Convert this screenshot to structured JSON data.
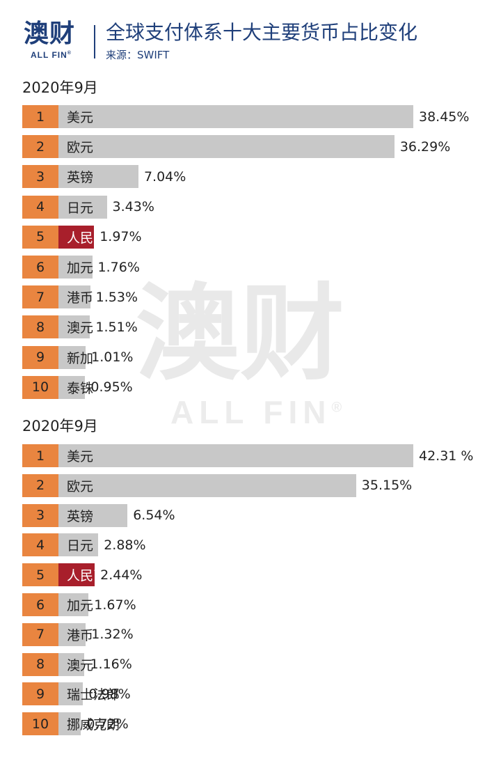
{
  "header": {
    "logo_cn": "澳财",
    "logo_en": "ALL FIN",
    "logo_mark": "®",
    "title": "全球支付体系十大主要货币占比变化",
    "source": "来源：SWIFT"
  },
  "watermark": {
    "cn": "澳财",
    "en": "ALL FIN",
    "mark": "®"
  },
  "colors": {
    "rank": "#e98540",
    "bar": "#c8c8c8",
    "highlight": "#a81f2b",
    "brand": "#1f3f7a"
  },
  "chart_data": [
    {
      "type": "bar",
      "orientation": "horizontal",
      "title": "2020年9月",
      "highlight": "人民币",
      "ranks": [
        "1",
        "2",
        "3",
        "4",
        "5",
        "6",
        "7",
        "8",
        "9",
        "10"
      ],
      "categories": [
        "美元",
        "欧元",
        "英镑",
        "日元",
        "人民币",
        "加元",
        "港币",
        "澳元",
        "新加",
        "泰铢"
      ],
      "values": [
        38.45,
        36.29,
        7.04,
        3.43,
        1.97,
        1.76,
        1.53,
        1.51,
        1.01,
        0.95
      ],
      "labels": [
        "38.45%",
        "36.29%",
        "7.04%",
        "3.43%",
        "1.97%",
        "1.76%",
        "1.53%",
        "1.51%",
        "1.01%",
        "0.95%"
      ]
    },
    {
      "type": "bar",
      "orientation": "horizontal",
      "title": "2020年9月",
      "highlight": "人民币",
      "ranks": [
        "1",
        "2",
        "3",
        "4",
        "5",
        "6",
        "7",
        "8",
        "9",
        "10"
      ],
      "categories": [
        "美元",
        "欧元",
        "英镑",
        "日元",
        "人民币",
        "加元",
        "港币",
        "澳元",
        "瑞士法郎",
        "挪威克朗"
      ],
      "values": [
        42.31,
        35.15,
        6.54,
        2.88,
        2.44,
        1.67,
        1.32,
        1.16,
        0.98,
        0.72
      ],
      "labels": [
        "42.31 %",
        "35.15%",
        "6.54%",
        "2.88%",
        "2.44%",
        "1.67%",
        "1.32%",
        "1.16%",
        "0.98%",
        "0.72%"
      ]
    }
  ]
}
